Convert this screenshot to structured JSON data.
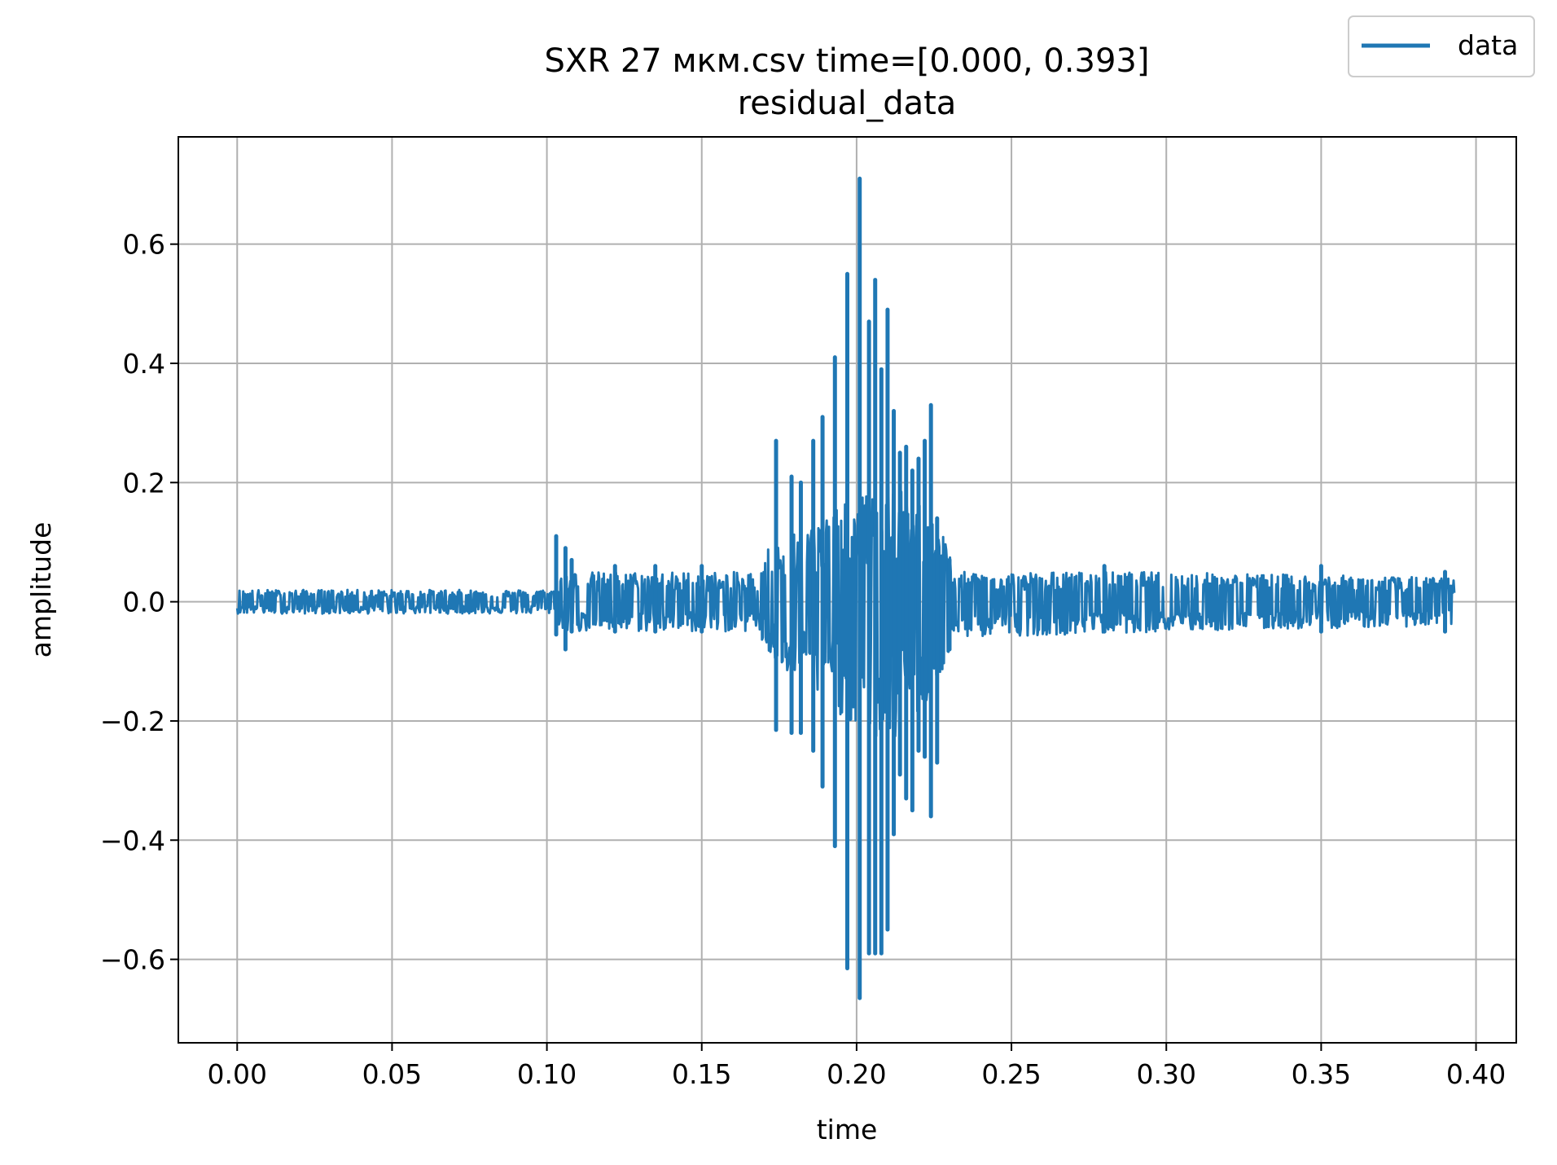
{
  "chart_data": {
    "type": "line",
    "title": "SXR 27 мкм.csv time=[0.000, 0.393]",
    "subtitle": "residual_data",
    "xlabel": "time",
    "ylabel": "amplitude",
    "xlim": [
      -0.019,
      0.413
    ],
    "ylim": [
      -0.74,
      0.78
    ],
    "xticks": [
      0.0,
      0.05,
      0.1,
      0.15,
      0.2,
      0.25,
      0.3,
      0.35,
      0.4
    ],
    "xtick_labels": [
      "0.00",
      "0.05",
      "0.10",
      "0.15",
      "0.20",
      "0.25",
      "0.30",
      "0.35",
      "0.40"
    ],
    "yticks": [
      0.6,
      0.4,
      0.2,
      0.0,
      -0.2,
      -0.4,
      -0.6
    ],
    "ytick_labels": [
      "0.6",
      "0.4",
      "0.2",
      "0.0",
      "−0.2",
      "−0.4",
      "−0.6"
    ],
    "grid": true,
    "legend": {
      "position": "top-right",
      "entries": [
        "data"
      ]
    },
    "series": [
      {
        "name": "data",
        "color": "#1f77b4",
        "envelope": [
          {
            "x": 0.0,
            "max": 0.02,
            "min": -0.02
          },
          {
            "x": 0.05,
            "max": 0.02,
            "min": -0.02
          },
          {
            "x": 0.102,
            "max": 0.02,
            "min": -0.02
          },
          {
            "x": 0.105,
            "max": 0.05,
            "min": -0.05
          },
          {
            "x": 0.13,
            "max": 0.05,
            "min": -0.05
          },
          {
            "x": 0.168,
            "max": 0.05,
            "min": -0.05
          },
          {
            "x": 0.172,
            "max": 0.1,
            "min": -0.1
          },
          {
            "x": 0.21,
            "max": 0.2,
            "min": -0.25
          },
          {
            "x": 0.226,
            "max": 0.15,
            "min": -0.15
          },
          {
            "x": 0.232,
            "max": 0.05,
            "min": -0.06
          },
          {
            "x": 0.3,
            "max": 0.05,
            "min": -0.05
          },
          {
            "x": 0.393,
            "max": 0.04,
            "min": -0.04
          }
        ],
        "spikes": [
          {
            "x": 0.103,
            "max": 0.11,
            "min": -0.055
          },
          {
            "x": 0.106,
            "max": 0.09,
            "min": -0.08
          },
          {
            "x": 0.108,
            "max": 0.07,
            "min": -0.05
          },
          {
            "x": 0.122,
            "max": 0.06,
            "min": -0.05
          },
          {
            "x": 0.135,
            "max": 0.06,
            "min": -0.05
          },
          {
            "x": 0.15,
            "max": 0.06,
            "min": -0.05
          },
          {
            "x": 0.174,
            "max": 0.27,
            "min": -0.215
          },
          {
            "x": 0.179,
            "max": 0.21,
            "min": -0.22
          },
          {
            "x": 0.182,
            "max": 0.2,
            "min": -0.22
          },
          {
            "x": 0.186,
            "max": 0.27,
            "min": -0.25
          },
          {
            "x": 0.189,
            "max": 0.31,
            "min": -0.31
          },
          {
            "x": 0.193,
            "max": 0.41,
            "min": -0.41
          },
          {
            "x": 0.197,
            "max": 0.55,
            "min": -0.615
          },
          {
            "x": 0.201,
            "max": 0.71,
            "min": -0.665
          },
          {
            "x": 0.204,
            "max": 0.47,
            "min": -0.59
          },
          {
            "x": 0.206,
            "max": 0.54,
            "min": -0.59
          },
          {
            "x": 0.208,
            "max": 0.39,
            "min": -0.59
          },
          {
            "x": 0.21,
            "max": 0.49,
            "min": -0.55
          },
          {
            "x": 0.212,
            "max": 0.32,
            "min": -0.39
          },
          {
            "x": 0.214,
            "max": 0.25,
            "min": -0.29
          },
          {
            "x": 0.216,
            "max": 0.26,
            "min": -0.33
          },
          {
            "x": 0.218,
            "max": 0.22,
            "min": -0.35
          },
          {
            "x": 0.22,
            "max": 0.24,
            "min": -0.25
          },
          {
            "x": 0.222,
            "max": 0.27,
            "min": -0.26
          },
          {
            "x": 0.224,
            "max": 0.33,
            "min": -0.36
          },
          {
            "x": 0.226,
            "max": 0.14,
            "min": -0.27
          },
          {
            "x": 0.23,
            "max": 0.07,
            "min": -0.08
          },
          {
            "x": 0.28,
            "max": 0.06,
            "min": -0.05
          },
          {
            "x": 0.35,
            "max": 0.06,
            "min": -0.05
          },
          {
            "x": 0.39,
            "max": 0.05,
            "min": -0.05
          }
        ]
      }
    ]
  }
}
